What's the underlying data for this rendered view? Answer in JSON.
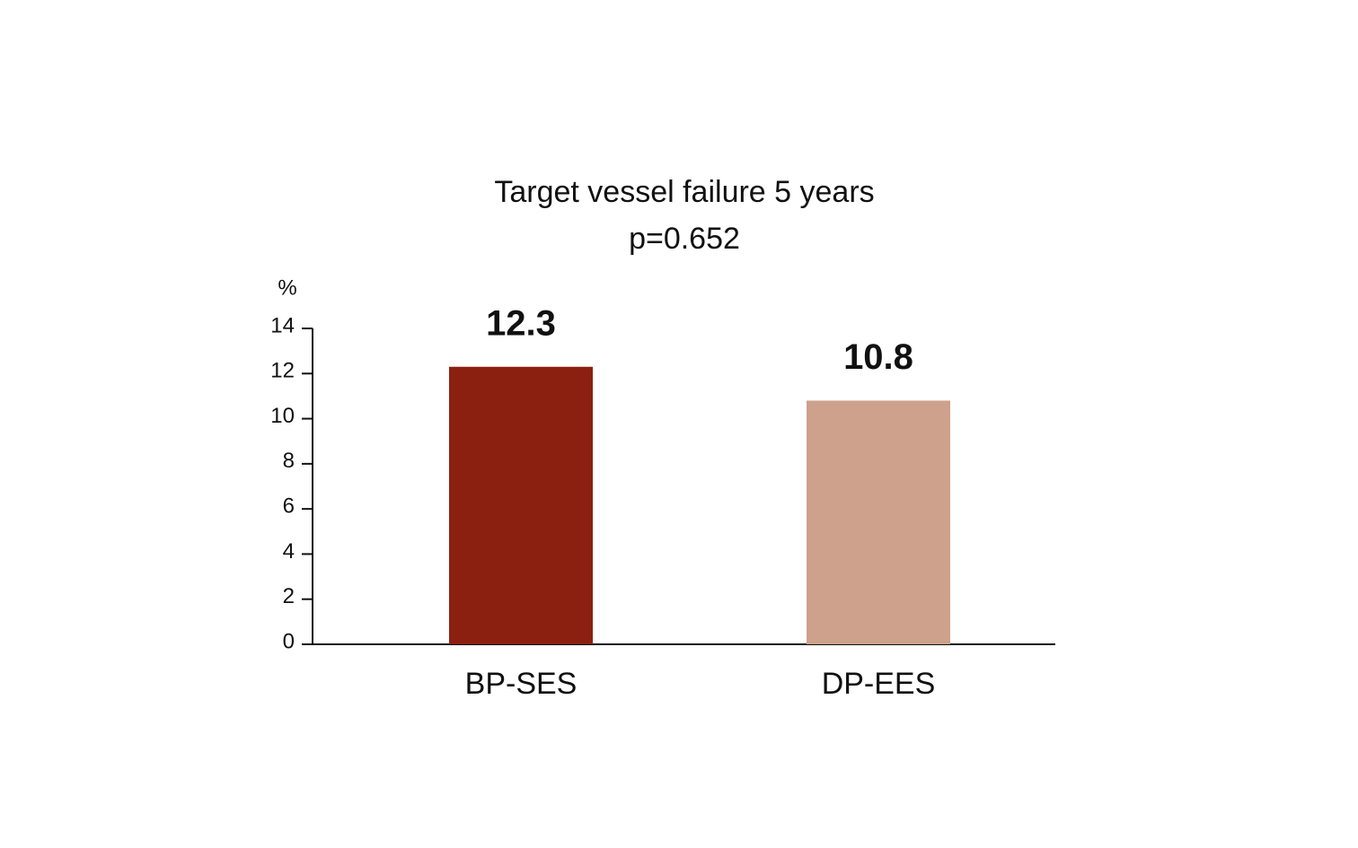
{
  "chart_data": {
    "type": "bar",
    "title": "Target vessel failure 5 years",
    "subtitle": "p=0.652",
    "y_label": "%",
    "categories": [
      "BP-SES",
      "DP-EES"
    ],
    "values": [
      12.3,
      10.8
    ],
    "colors": [
      "#8b2011",
      "#cda18b"
    ],
    "ylim": [
      0,
      14
    ],
    "yticks": [
      0,
      2,
      4,
      6,
      8,
      10,
      12,
      14
    ],
    "grid": false
  }
}
